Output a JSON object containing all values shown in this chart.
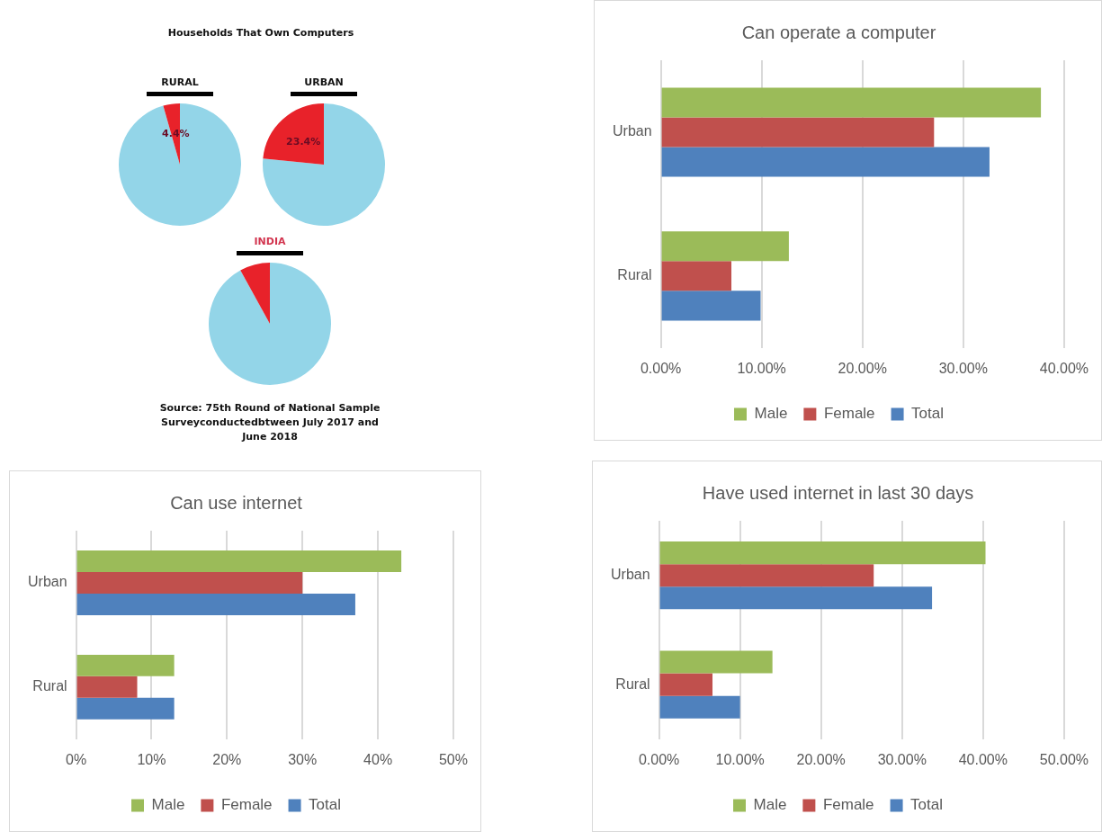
{
  "chart_data": [
    {
      "type": "other",
      "title": "Households That Own Computers"
    },
    {
      "type": "pie",
      "title": "RURAL",
      "categories": [
        null,
        null
      ],
      "values": [
        95.6,
        4.4
      ],
      "colors": [
        "#93d5e8",
        "#e8222a"
      ],
      "value_labels": [
        null,
        "4.4%"
      ],
      "legend": false
    },
    {
      "type": "pie",
      "title": "URBAN",
      "categories": [
        null,
        null
      ],
      "values": [
        76.6,
        23.4
      ],
      "colors": [
        "#93d5e8",
        "#e8222a"
      ],
      "value_labels": [
        null,
        "23.4%"
      ],
      "legend": false
    },
    {
      "type": "pie",
      "title": "INDIA",
      "categories": [
        null,
        null
      ],
      "values": [
        92,
        8
      ],
      "colors": [
        "#93d5e8",
        "#e8222a"
      ],
      "legend": false,
      "annotations": [
        "Source: 75th Round of National Sample Surveyconductedbtween July 2017 and June 2018"
      ]
    },
    {
      "type": "bar",
      "orientation": "horizontal",
      "title": "Can operate a computer",
      "categories": [
        "Urban",
        "Rural"
      ],
      "series": [
        {
          "name": "Male",
          "color": "#9bbb59",
          "values": [
            37.7,
            12.7
          ]
        },
        {
          "name": "Female",
          "color": "#c0504d",
          "values": [
            27.1,
            7.0
          ]
        },
        {
          "name": "Total",
          "color": "#4f81bd",
          "values": [
            32.6,
            9.9
          ]
        }
      ],
      "xlim": [
        0,
        40
      ],
      "xticks": [
        {
          "value": 0,
          "label": "0.00%"
        },
        {
          "value": 10,
          "label": "10.00%"
        },
        {
          "value": 20,
          "label": "20.00%"
        },
        {
          "value": 30,
          "label": "30.00%"
        },
        {
          "value": 40,
          "label": "40.00%"
        }
      ],
      "grid": "x",
      "legend": "bottom"
    },
    {
      "type": "bar",
      "orientation": "horizontal",
      "title": "Can use internet",
      "categories": [
        "Urban",
        "Rural"
      ],
      "series": [
        {
          "name": "Male",
          "color": "#9bbb59",
          "values": [
            43.1,
            13.0
          ]
        },
        {
          "name": "Female",
          "color": "#c0504d",
          "values": [
            30.0,
            8.1
          ]
        },
        {
          "name": "Total",
          "color": "#4f81bd",
          "values": [
            37.0,
            13.0
          ]
        }
      ],
      "xlim": [
        0,
        50
      ],
      "xticks": [
        {
          "value": 0,
          "label": "0%"
        },
        {
          "value": 10,
          "label": "10%"
        },
        {
          "value": 20,
          "label": "20%"
        },
        {
          "value": 30,
          "label": "30%"
        },
        {
          "value": 40,
          "label": "40%"
        },
        {
          "value": 50,
          "label": "50%"
        }
      ],
      "grid": "x",
      "legend": "bottom"
    },
    {
      "type": "bar",
      "orientation": "horizontal",
      "title": "Have used internet in last 30 days",
      "categories": [
        "Urban",
        "Rural"
      ],
      "series": [
        {
          "name": "Male",
          "color": "#9bbb59",
          "values": [
            40.3,
            14.0
          ]
        },
        {
          "name": "Female",
          "color": "#c0504d",
          "values": [
            26.5,
            6.6
          ]
        },
        {
          "name": "Total",
          "color": "#4f81bd",
          "values": [
            33.7,
            10.0
          ]
        }
      ],
      "xlim": [
        0,
        50
      ],
      "xticks": [
        {
          "value": 0,
          "label": "0.00%"
        },
        {
          "value": 10,
          "label": "10.00%"
        },
        {
          "value": 20,
          "label": "20.00%"
        },
        {
          "value": 30,
          "label": "30.00%"
        },
        {
          "value": 40,
          "label": "40.00%"
        },
        {
          "value": 50,
          "label": "50.00%"
        }
      ],
      "grid": "x",
      "legend": "bottom"
    }
  ]
}
